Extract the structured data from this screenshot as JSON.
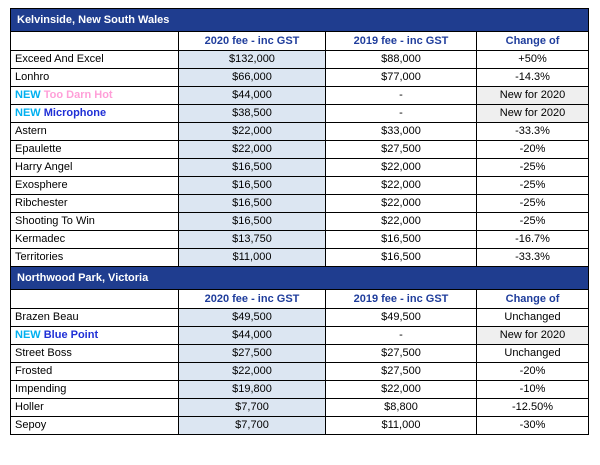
{
  "sections": [
    {
      "title": "Kelvinside, New South Wales",
      "headers": [
        "2020 fee - inc GST",
        "2019 fee - inc GST",
        "Change of"
      ],
      "rows": [
        {
          "name": "Exceed And Excel",
          "fee_2020": "$132,000",
          "fee_2019": "$88,000",
          "change": "+50%"
        },
        {
          "name": "Lonhro",
          "fee_2020": "$66,000",
          "fee_2019": "$77,000",
          "change": "-14.3%"
        },
        {
          "tag": "NEW",
          "name": "Too Darn Hot",
          "name_color": "#ff9fd8",
          "fee_2020": "$44,000",
          "fee_2019": "-",
          "change": "New for 2020"
        },
        {
          "tag": "NEW",
          "name": "Microphone",
          "name_color": "#1f2fd6",
          "fee_2020": "$38,500",
          "fee_2019": "-",
          "change": "New for 2020"
        },
        {
          "name": "Astern",
          "fee_2020": "$22,000",
          "fee_2019": "$33,000",
          "change": "-33.3%"
        },
        {
          "name": "Epaulette",
          "fee_2020": "$22,000",
          "fee_2019": "$27,500",
          "change": "-20%"
        },
        {
          "name": "Harry Angel",
          "fee_2020": "$16,500",
          "fee_2019": "$22,000",
          "change": "-25%"
        },
        {
          "name": "Exosphere",
          "fee_2020": "$16,500",
          "fee_2019": "$22,000",
          "change": "-25%"
        },
        {
          "name": "Ribchester",
          "fee_2020": "$16,500",
          "fee_2019": "$22,000",
          "change": "-25%"
        },
        {
          "name": "Shooting To Win",
          "fee_2020": "$16,500",
          "fee_2019": "$22,000",
          "change": "-25%"
        },
        {
          "name": "Kermadec",
          "fee_2020": "$13,750",
          "fee_2019": "$16,500",
          "change": "-16.7%"
        },
        {
          "name": "Territories",
          "fee_2020": "$11,000",
          "fee_2019": "$16,500",
          "change": "-33.3%"
        }
      ]
    },
    {
      "title": "Northwood Park, Victoria",
      "headers": [
        "2020 fee - inc GST",
        "2019 fee - inc GST",
        "Change of"
      ],
      "rows": [
        {
          "name": "Brazen Beau",
          "fee_2020": "$49,500",
          "fee_2019": "$49,500",
          "change": "Unchanged"
        },
        {
          "tag": "NEW",
          "name": "Blue Point",
          "name_color": "#1f2fd6",
          "fee_2020": "$44,000",
          "fee_2019": "-",
          "change": "New for 2020"
        },
        {
          "name": "Street Boss",
          "fee_2020": "$27,500",
          "fee_2019": "$27,500",
          "change": "Unchanged"
        },
        {
          "name": "Frosted",
          "fee_2020": "$22,000",
          "fee_2019": "$27,500",
          "change": "-20%"
        },
        {
          "name": "Impending",
          "fee_2020": "$19,800",
          "fee_2019": "$22,000",
          "change": "-10%"
        },
        {
          "name": "Holler",
          "fee_2020": "$7,700",
          "fee_2019": "$8,800",
          "change": "-12.50%"
        },
        {
          "name": "Sepoy",
          "fee_2020": "$7,700",
          "fee_2019": "$11,000",
          "change": "-30%"
        }
      ]
    }
  ]
}
